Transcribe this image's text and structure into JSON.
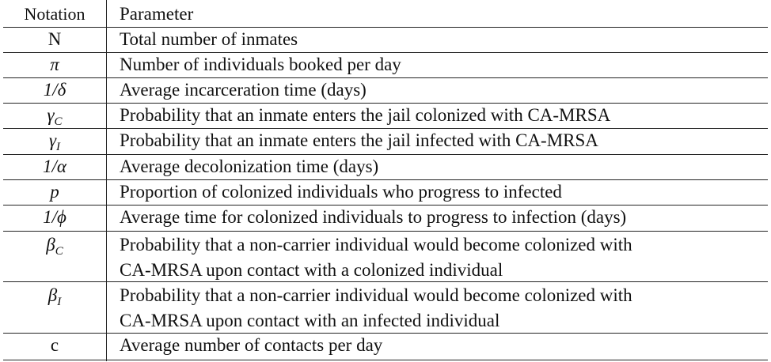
{
  "table": {
    "header": {
      "notation": "Notation",
      "parameter": "Parameter"
    },
    "rows": [
      {
        "notation": "N",
        "param": [
          "Total number of inmates"
        ]
      },
      {
        "notation": "π",
        "param": [
          "Number of individuals booked per day"
        ]
      },
      {
        "notation": "1/δ",
        "param": [
          "Average incarceration time (days)"
        ]
      },
      {
        "notation": "γC",
        "param": [
          "Probability that an inmate enters the jail colonized with CA-MRSA"
        ]
      },
      {
        "notation": "γI",
        "param": [
          "Probability that an inmate enters the jail infected with CA-MRSA"
        ]
      },
      {
        "notation": "1/α",
        "param": [
          "Average decolonization time (days)"
        ]
      },
      {
        "notation": "p",
        "param": [
          "Proportion of colonized individuals who progress to infected"
        ]
      },
      {
        "notation": "1/ϕ",
        "param": [
          "Average time for colonized individuals to progress to infection (days)"
        ]
      },
      {
        "notation": "βC",
        "param": [
          "Probability that a non-carrier individual would become colonized with",
          "CA-MRSA upon contact with a colonized individual"
        ]
      },
      {
        "notation": "βI",
        "param": [
          "Probability that a non-carrier individual would become colonized with",
          "CA-MRSA upon contact with an infected individual"
        ]
      },
      {
        "notation": "c",
        "param": [
          "Average number of contacts per day"
        ]
      }
    ]
  }
}
